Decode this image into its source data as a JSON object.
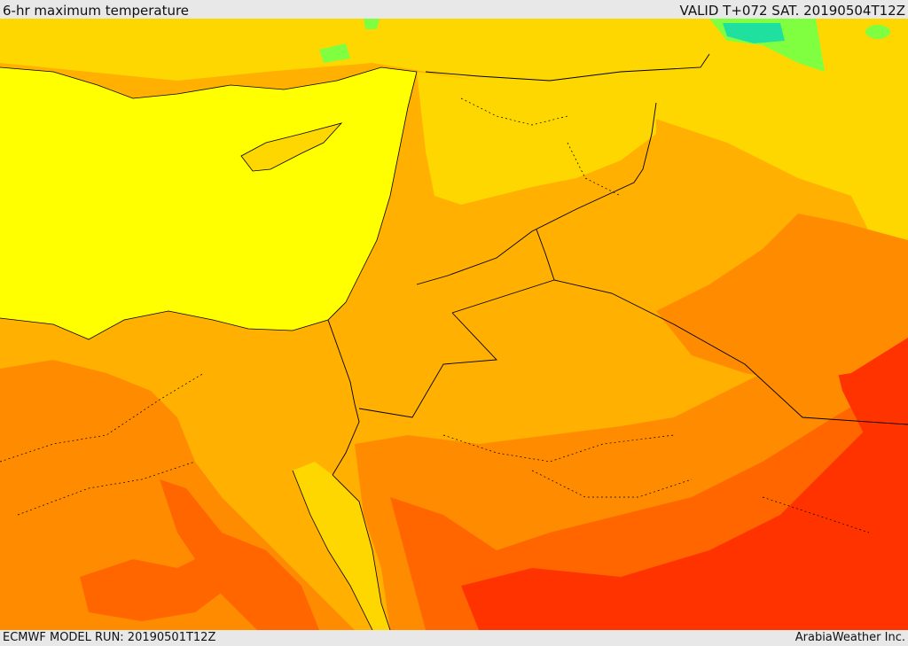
{
  "header": {
    "title": "6-hr maximum temperature",
    "valid": "VALID T+072 SAT. 20190504T12Z"
  },
  "footer": {
    "model_run": "ECMWF MODEL RUN: 20190501T12Z",
    "credit": "ArabiaWeather Inc."
  },
  "colors": {
    "sea": "#ffff00",
    "warm_yellow": "#ffd700",
    "light_orange": "#ffb000",
    "orange": "#ff8c00",
    "dark_orange": "#ff6600",
    "red_orange": "#ff3300",
    "cool_green": "#80ff40",
    "cyan_green": "#20e0a0"
  }
}
